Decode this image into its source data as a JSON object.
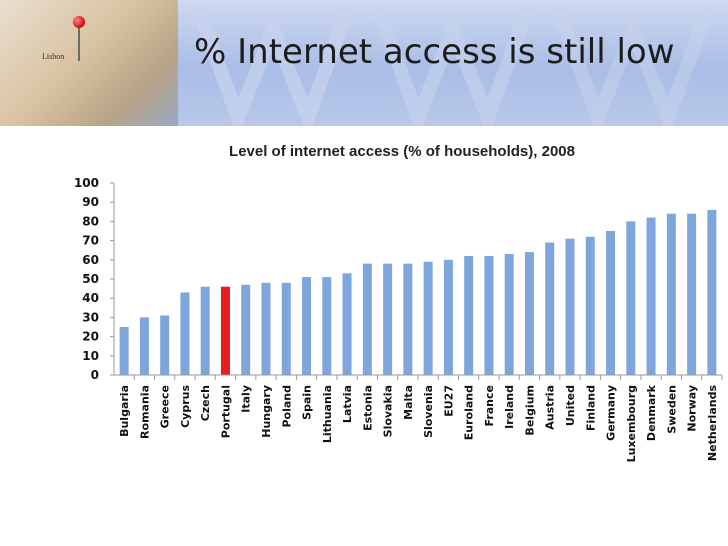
{
  "slide": {
    "title": "% Internet access is still low",
    "map_label": "Lisbon"
  },
  "colors": {
    "bar": "#7ea6dd",
    "bar_highlight": "#e81c1c",
    "banner": "#a9bde6"
  },
  "icons": [
    "map-pin-icon"
  ],
  "chart_data": {
    "type": "bar",
    "title": "Level of internet access (% of households), 2008",
    "xlabel": "",
    "ylabel": "",
    "ylim": [
      0,
      100
    ],
    "yticks": [
      0,
      10,
      20,
      30,
      40,
      50,
      60,
      70,
      80,
      90,
      100
    ],
    "grid": false,
    "legend": "none",
    "highlight": "Portugal",
    "categories": [
      "Bulgaria",
      "Romania",
      "Greece",
      "Cyprus",
      "Czech",
      "Portugal",
      "Italy",
      "Hungary",
      "Poland",
      "Spain",
      "Lithuania",
      "Latvia",
      "Estonia",
      "Slovakia",
      "Malta",
      "Slovenia",
      "EU27",
      "Euroland",
      "France",
      "Ireland",
      "Belgium",
      "Austria",
      "United",
      "Finland",
      "Germany",
      "Luxembourg",
      "Denmark",
      "Sweden",
      "Norway",
      "Netherlands"
    ],
    "values": [
      25,
      30,
      31,
      43,
      46,
      46,
      47,
      48,
      48,
      51,
      51,
      53,
      58,
      58,
      58,
      59,
      60,
      62,
      62,
      63,
      64,
      69,
      71,
      72,
      75,
      80,
      82,
      84,
      84,
      86
    ]
  }
}
